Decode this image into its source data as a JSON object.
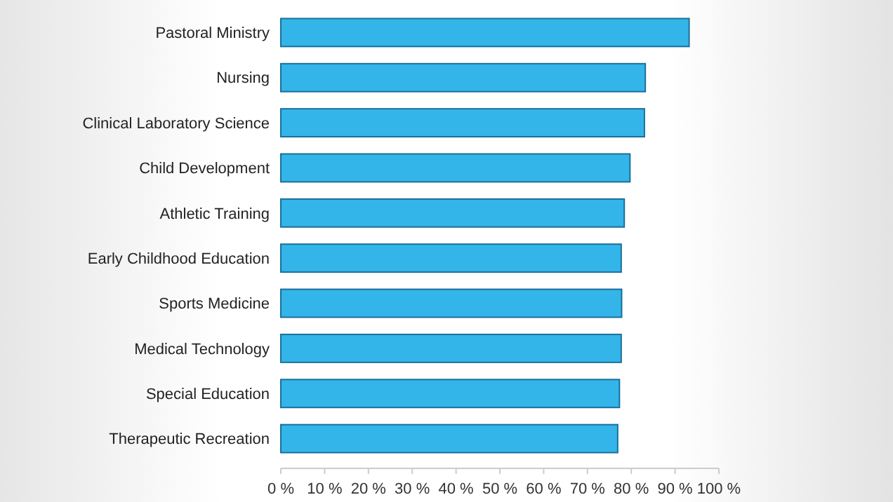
{
  "chart_data": {
    "type": "bar",
    "orientation": "horizontal",
    "categories": [
      "Pastoral Ministry",
      "Nursing",
      "Clinical Laboratory Science",
      "Child Development",
      "Athletic Training",
      "Early Childhood Education",
      "Sports Medicine",
      "Medical Technology",
      "Special Education",
      "Therapeutic Recreation"
    ],
    "values": [
      93.2,
      83.2,
      83,
      79.7,
      78.4,
      77.7,
      77.8,
      77.7,
      77.3,
      76.9
    ],
    "color": "#33b5e9",
    "xlim": [
      0,
      100
    ],
    "xticks": [
      {
        "value": 0,
        "label": "0 %"
      },
      {
        "value": 10,
        "label": "10 %"
      },
      {
        "value": 20,
        "label": "20 %"
      },
      {
        "value": 30,
        "label": "30 %"
      },
      {
        "value": 40,
        "label": "40 %"
      },
      {
        "value": 50,
        "label": "50 %"
      },
      {
        "value": 60,
        "label": "60 %"
      },
      {
        "value": 70,
        "label": "70 %"
      },
      {
        "value": 80,
        "label": "80 %"
      },
      {
        "value": 90,
        "label": "90 %"
      },
      {
        "value": 100,
        "label": "100 %"
      }
    ],
    "grid": false
  }
}
